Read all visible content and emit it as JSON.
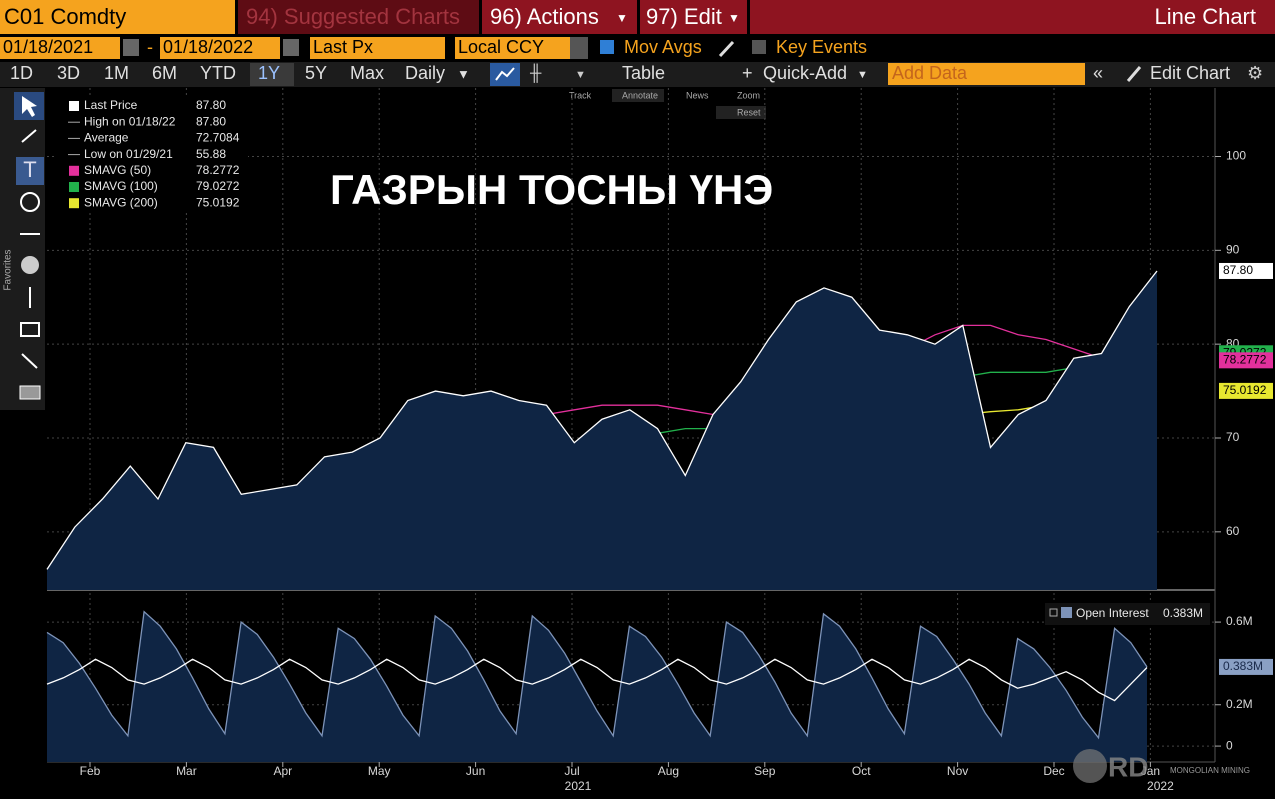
{
  "header": {
    "ticker": "C01 Comdty",
    "suggested": "94) Suggested Charts",
    "actions": "96) Actions",
    "edit": "97) Edit",
    "chart_type": "Line Chart"
  },
  "controls": {
    "start_date": "01/18/2021",
    "separator": "-",
    "end_date": "01/18/2022",
    "field": "Last Px",
    "currency": "Local CCY",
    "mov_avgs": "Mov Avgs",
    "key_events": "Key Events"
  },
  "periods": [
    "1D",
    "3D",
    "1M",
    "6M",
    "YTD",
    "1Y",
    "5Y",
    "Max"
  ],
  "frequency": "Daily",
  "table_button": "Table",
  "quick_add": "Quick-Add",
  "add_data": "Add Data",
  "edit_chart": "Edit Chart",
  "chart_tools": [
    "Track",
    "Annotate",
    "News",
    "Zoom",
    "Reset"
  ],
  "sidebar_label": "Favorites",
  "legend": [
    {
      "label": "High on 01/18/22",
      "value": "87.80"
    },
    {
      "label": "Average",
      "value": "72.7084"
    },
    {
      "label": "Low on 01/29/21",
      "value": "55.88"
    }
  ],
  "watermark": {
    "logo": "RD",
    "text": "MONGOLIAN MINING"
  },
  "chart_data": [
    {
      "type": "line",
      "title": "ГАЗРЫН ТОСНЫ ҮНЭ",
      "ylim": [
        53.8,
        107.3
      ],
      "yticks": [
        60,
        70,
        80,
        90,
        100
      ],
      "grid": true,
      "series": [
        {
          "name": "Last Price",
          "color": "#ffffff",
          "area_color": "#0f2544",
          "last_label": "87.80",
          "values": [
            56.0,
            60.5,
            63.5,
            67,
            63.5,
            69.5,
            69,
            64,
            64.5,
            65,
            68,
            68.5,
            70,
            74,
            75,
            74.5,
            75,
            74,
            73.5,
            69.5,
            72,
            73,
            71,
            66,
            72.5,
            76,
            80.5,
            84.5,
            86,
            85,
            81.5,
            81,
            80,
            82,
            69,
            72.5,
            74,
            78.5,
            79,
            84,
            87.8
          ]
        },
        {
          "name": "SMAVG (50)",
          "color": "#e3309c",
          "last_label": "78.2772",
          "values": [
            null,
            null,
            54.5,
            55.5,
            57,
            58.5,
            60,
            62,
            64,
            65,
            65.5,
            66,
            66.5,
            67.5,
            68.5,
            70,
            71,
            72,
            72.5,
            73,
            73.5,
            73.5,
            73.5,
            73,
            72.5,
            72.5,
            72.5,
            73,
            74,
            75.5,
            77.5,
            79.5,
            81,
            82,
            82,
            81,
            80.5,
            79.5,
            78.5,
            78,
            78.2772
          ]
        },
        {
          "name": "SMAVG (100)",
          "color": "#22b14c",
          "last_label": "79.0272",
          "values": [
            null,
            null,
            null,
            null,
            null,
            54.5,
            55.5,
            57,
            58.5,
            60,
            61,
            62,
            63,
            64,
            65,
            66,
            67,
            68,
            68.5,
            69,
            69.5,
            70,
            70.5,
            71,
            71,
            71.5,
            72,
            72.5,
            73.5,
            74.5,
            75.5,
            76,
            76.5,
            76.5,
            77,
            77,
            77,
            77.5,
            78,
            78.5,
            79.0272
          ]
        },
        {
          "name": "SMAVG (200)",
          "color": "#e8e830",
          "last_label": "75.0192",
          "values": [
            null,
            null,
            null,
            null,
            null,
            null,
            null,
            null,
            null,
            null,
            null,
            null,
            null,
            54,
            54.8,
            55.8,
            57,
            58,
            59,
            60,
            61,
            62,
            63,
            64,
            64.8,
            65.5,
            66.5,
            67.5,
            68.5,
            69.5,
            70.5,
            71.5,
            72,
            72.5,
            72.8,
            73,
            73.5,
            74,
            74.5,
            74.8,
            75.0192
          ]
        }
      ]
    },
    {
      "type": "area",
      "ylim": [
        -0.077,
        0.731
      ],
      "yticks": [
        0,
        {
          "value": 0.2,
          "label": "0.2M"
        },
        {
          "value": 0.6,
          "label": "0.6M"
        }
      ],
      "xtick_labels": [
        "Feb",
        "Mar",
        "Apr",
        "May",
        "Jun",
        "Jul",
        "Aug",
        "Sep",
        "Oct",
        "Nov",
        "Dec",
        "Jan"
      ],
      "year_labels": [
        "2021",
        "2022"
      ],
      "series": [
        {
          "name": "Open Interest",
          "color": "#0f2544",
          "last_label": "0.383M",
          "values": [
            0.55,
            0.5,
            0.4,
            0.28,
            0.15,
            0.05,
            0.65,
            0.58,
            0.47,
            0.33,
            0.18,
            0.06,
            0.6,
            0.54,
            0.43,
            0.3,
            0.16,
            0.05,
            0.57,
            0.52,
            0.42,
            0.29,
            0.15,
            0.05,
            0.63,
            0.57,
            0.46,
            0.32,
            0.17,
            0.06,
            0.63,
            0.56,
            0.45,
            0.31,
            0.17,
            0.05,
            0.58,
            0.53,
            0.43,
            0.3,
            0.16,
            0.05,
            0.6,
            0.55,
            0.44,
            0.31,
            0.16,
            0.05,
            0.64,
            0.58,
            0.47,
            0.33,
            0.18,
            0.06,
            0.58,
            0.53,
            0.42,
            0.3,
            0.16,
            0.05,
            0.52,
            0.47,
            0.38,
            0.27,
            0.14,
            0.04,
            0.57,
            0.5,
            0.383
          ]
        },
        {
          "color": "#ffffff",
          "values": [
            0.3,
            0.33,
            0.37,
            0.42,
            0.38,
            0.32,
            0.3,
            0.33,
            0.37,
            0.42,
            0.38,
            0.32,
            0.3,
            0.33,
            0.37,
            0.42,
            0.38,
            0.32,
            0.3,
            0.33,
            0.37,
            0.42,
            0.38,
            0.32,
            0.3,
            0.33,
            0.37,
            0.42,
            0.38,
            0.32,
            0.3,
            0.33,
            0.37,
            0.42,
            0.38,
            0.32,
            0.3,
            0.33,
            0.37,
            0.42,
            0.38,
            0.32,
            0.3,
            0.33,
            0.37,
            0.42,
            0.38,
            0.32,
            0.3,
            0.33,
            0.37,
            0.42,
            0.38,
            0.32,
            0.3,
            0.33,
            0.37,
            0.42,
            0.38,
            0.32,
            0.28,
            0.3,
            0.33,
            0.36,
            0.32,
            0.26,
            0.22,
            0.3,
            0.38
          ]
        }
      ]
    }
  ]
}
